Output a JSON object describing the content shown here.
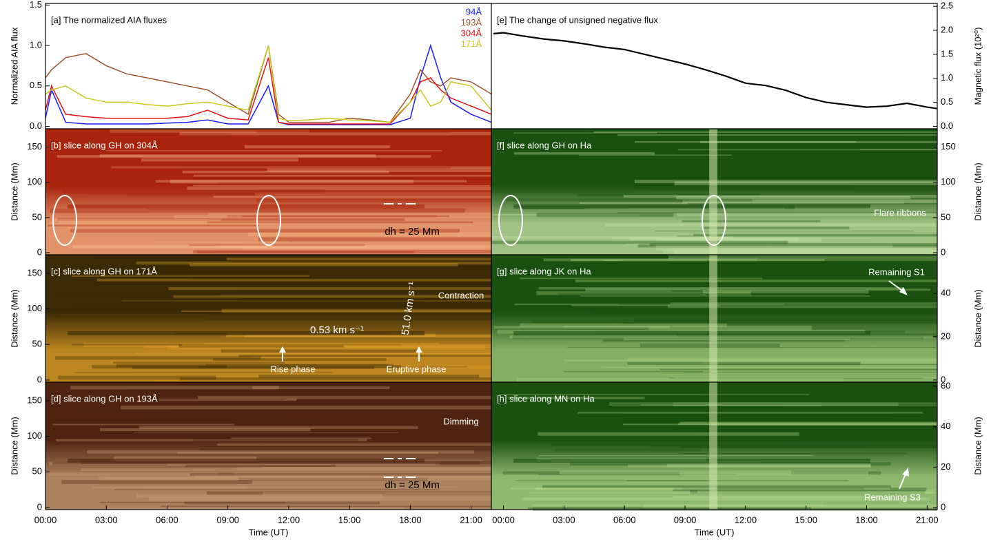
{
  "chart_data": [
    {
      "type": "line",
      "title": "[a] The normalized AIA fluxes",
      "y_label": "Normalized AIA flux",
      "x": [
        0,
        0.3,
        1,
        2,
        3,
        4,
        5,
        6,
        7,
        8,
        9,
        10,
        11,
        11.5,
        12,
        13,
        14,
        15,
        16,
        17,
        18,
        18.5,
        19,
        19.5,
        20,
        21,
        22
      ],
      "series": [
        {
          "name": "94Å",
          "color": "#1a1aff",
          "values": [
            0.1,
            0.45,
            0.05,
            0.03,
            0.03,
            0.03,
            0.03,
            0.04,
            0.05,
            0.08,
            0.03,
            0.03,
            0.5,
            0.05,
            0.02,
            0.02,
            0.02,
            0.02,
            0.02,
            0.02,
            0.1,
            0.6,
            1.0,
            0.6,
            0.3,
            0.15,
            0.05
          ]
        },
        {
          "name": "193Å",
          "color": "#a0522d",
          "values": [
            0.6,
            0.7,
            0.85,
            0.9,
            0.75,
            0.65,
            0.6,
            0.55,
            0.5,
            0.45,
            0.3,
            0.15,
            1.0,
            0.15,
            0.05,
            0.05,
            0.05,
            0.1,
            0.08,
            0.05,
            0.4,
            0.7,
            0.55,
            0.5,
            0.6,
            0.55,
            0.4
          ]
        },
        {
          "name": "304Å",
          "color": "#e81010",
          "values": [
            0.2,
            0.5,
            0.15,
            0.12,
            0.1,
            0.1,
            0.1,
            0.1,
            0.12,
            0.2,
            0.1,
            0.08,
            0.85,
            0.05,
            0.03,
            0.03,
            0.03,
            0.03,
            0.03,
            0.03,
            0.3,
            0.55,
            0.6,
            0.45,
            0.35,
            0.25,
            0.15
          ]
        },
        {
          "name": "171Å",
          "color": "#c8c820",
          "values": [
            0.4,
            0.45,
            0.5,
            0.35,
            0.3,
            0.3,
            0.27,
            0.25,
            0.28,
            0.3,
            0.25,
            0.2,
            1.0,
            0.1,
            0.07,
            0.08,
            0.1,
            0.08,
            0.07,
            0.05,
            0.3,
            0.45,
            0.25,
            0.3,
            0.55,
            0.5,
            0.2
          ]
        }
      ],
      "xlim": [
        0,
        22
      ],
      "ylim": [
        -0.03,
        1.52
      ],
      "yticks": [
        {
          "value": 0,
          "label": "0.0"
        },
        0.5,
        {
          "value": 1,
          "label": "1.0"
        },
        1.5
      ]
    },
    {
      "type": "line",
      "title": "[e] The change of unsigned negative flux",
      "y_label": "Magnetic flux (10²⁰)",
      "color": "#000000",
      "x": [
        -0.5,
        0,
        1,
        2,
        3,
        4,
        5,
        6,
        7,
        8,
        9,
        10,
        11,
        12,
        13,
        14,
        15,
        16,
        17,
        18,
        19,
        20,
        21,
        21.5
      ],
      "values": [
        1.93,
        1.95,
        1.88,
        1.82,
        1.78,
        1.72,
        1.65,
        1.6,
        1.5,
        1.4,
        1.3,
        1.18,
        1.05,
        0.9,
        0.85,
        0.75,
        0.6,
        0.5,
        0.45,
        0.4,
        0.42,
        0.48,
        0.4,
        0.37
      ],
      "xlim": [
        -0.6,
        21.5
      ],
      "ylim": [
        -0.05,
        2.56
      ],
      "yticks": [
        {
          "value": 0,
          "label": "0.0"
        },
        0.5,
        {
          "value": 1,
          "label": "1.0"
        },
        1.5,
        {
          "value": 2,
          "label": "2.0"
        },
        2.5
      ]
    },
    {
      "type": "image",
      "title": "[b] slice along GH on 304Å",
      "y_label": "Distance (Mm)",
      "colors": [
        "#a8240c",
        "#f6b888"
      ],
      "xlim": [
        0,
        22
      ],
      "ylim": [
        -3,
        176
      ],
      "yticks": [
        0,
        50,
        100,
        150
      ],
      "annotations": [
        "dh = 25 Mm"
      ]
    },
    {
      "type": "image",
      "title": "[c] slice along GH on 171Å",
      "y_label": "Distance (Mm)",
      "colors": [
        "#3a2a06",
        "#e8a428"
      ],
      "xlim": [
        0,
        22
      ],
      "ylim": [
        -3,
        176
      ],
      "yticks": [
        0,
        50,
        100,
        150
      ],
      "annotations": [
        "Contraction",
        "0.53 km s⁻¹",
        "51.0 km s⁻¹",
        "Rise phase",
        "Eruptive phase"
      ]
    },
    {
      "type": "image",
      "title": "[d] slice along GH on 193Å",
      "y_label": "Distance (Mm)",
      "colors": [
        "#4e2410",
        "#caa078"
      ],
      "xlim": [
        0,
        22
      ],
      "ylim": [
        -3,
        176
      ],
      "yticks": [
        0,
        50,
        100,
        150
      ],
      "annotations": [
        "Dimming",
        "dh = 25 Mm"
      ],
      "x_label": "Time (UT)",
      "xticks": [
        {
          "value": 0,
          "label": "00:00"
        },
        {
          "value": 3,
          "label": "03:00"
        },
        {
          "value": 6,
          "label": "06:00"
        },
        {
          "value": 9,
          "label": "09:00"
        },
        {
          "value": 12,
          "label": "12:00"
        },
        {
          "value": 15,
          "label": "15:00"
        },
        {
          "value": 18,
          "label": "18:00"
        },
        {
          "value": 21,
          "label": "21:00"
        }
      ]
    },
    {
      "type": "image",
      "title": "[f] slice along GH on Ha",
      "y_label": "Distance (Mm)",
      "colors": [
        "#1a5010",
        "#cce8a8"
      ],
      "xlim": [
        -0.6,
        21.5
      ],
      "ylim": [
        -3,
        176
      ],
      "yticks": [
        0,
        50,
        100,
        150
      ],
      "annotations": [
        "Flare ribbons"
      ]
    },
    {
      "type": "image",
      "title": "[g] slice along JK on Ha",
      "y_label": "Distance (Mm)",
      "colors": [
        "#1a5010",
        "#a8d080"
      ],
      "xlim": [
        -0.6,
        21.5
      ],
      "ylim": [
        -1,
        57.8
      ],
      "yticks": [
        0,
        20,
        40
      ],
      "annotations": [
        "Remaining S1"
      ]
    },
    {
      "type": "image",
      "title": "[h]  slice along MN on Ha",
      "y_label": "Distance (Mm)",
      "colors": [
        "#1a5010",
        "#b8dc90"
      ],
      "xlim": [
        -0.6,
        21.5
      ],
      "ylim": [
        -1,
        62
      ],
      "yticks": [
        0,
        20,
        40,
        60
      ],
      "annotations": [
        "Remaining S3"
      ],
      "x_label": "Time (UT)",
      "xticks": [
        {
          "value": 0,
          "label": "00:00"
        },
        {
          "value": 3,
          "label": "03:00"
        },
        {
          "value": 6,
          "label": "06:00"
        },
        {
          "value": 9,
          "label": "09:00"
        },
        {
          "value": 12,
          "label": "12:00"
        },
        {
          "value": 15,
          "label": "15:00"
        },
        {
          "value": 18,
          "label": "18:00"
        },
        {
          "value": 21,
          "label": "21:00"
        }
      ]
    }
  ]
}
